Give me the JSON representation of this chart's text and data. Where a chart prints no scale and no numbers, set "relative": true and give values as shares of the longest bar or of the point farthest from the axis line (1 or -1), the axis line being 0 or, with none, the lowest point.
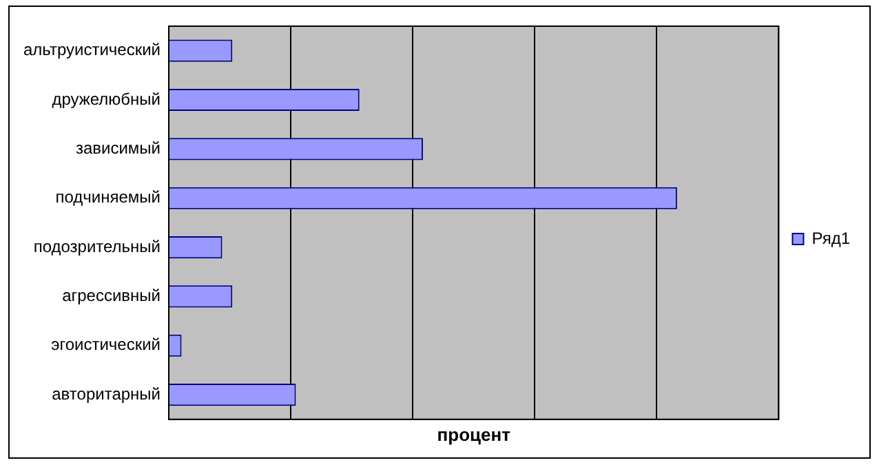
{
  "chart_data": {
    "type": "bar",
    "orientation": "horizontal",
    "relative": true,
    "xlabel": "процент",
    "categories": [
      "альтруистический",
      "дружелюбный",
      "зависимый",
      "подчиняемый",
      "подозрительный",
      "агрессивный",
      "эгоистический",
      "авторитарный"
    ],
    "series": [
      {
        "name": "Ряд1",
        "color": "#9999ff",
        "values": [
          0.125,
          0.375,
          0.5,
          1,
          0.105,
          0.125,
          0.025,
          0.25
        ]
      }
    ],
    "grid": "x",
    "legend": "right"
  }
}
